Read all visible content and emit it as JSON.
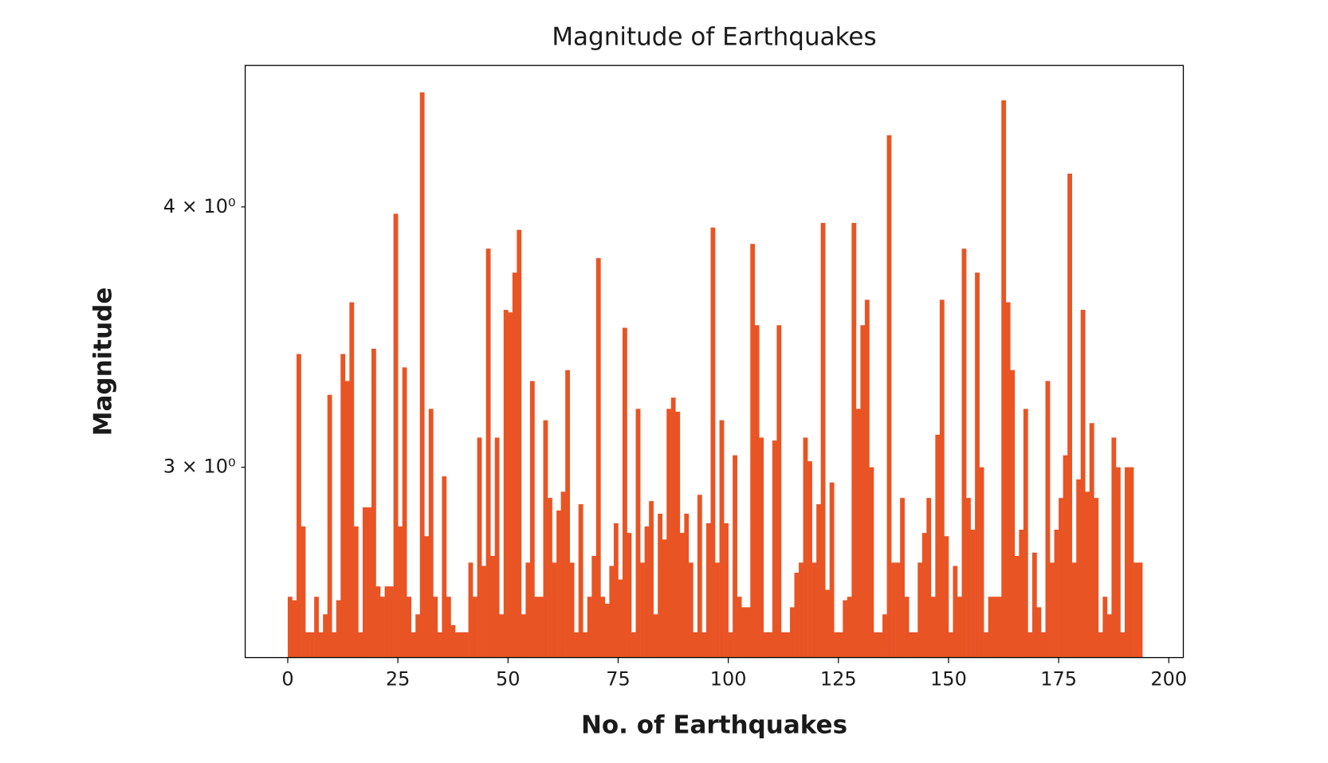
{
  "chart_data": {
    "type": "bar",
    "title": "Magnitude of Earthquakes",
    "xlabel": "No. of Earthquakes",
    "ylabel": "Magnitude",
    "color": "#e95424",
    "log_y": true,
    "grid": false,
    "x": [
      0,
      1,
      2,
      3,
      4,
      5,
      6,
      7,
      8,
      9,
      10,
      11,
      12,
      13,
      14,
      15,
      16,
      17,
      18,
      19,
      20,
      21,
      22,
      23,
      24,
      25,
      26,
      27,
      28,
      29,
      30,
      31,
      32,
      33,
      34,
      35,
      36,
      37,
      38,
      39,
      40,
      41,
      42,
      43,
      44,
      45,
      46,
      47,
      48,
      49,
      50,
      51,
      52,
      53,
      54,
      55,
      56,
      57,
      58,
      59,
      60,
      61,
      62,
      63,
      64,
      65,
      66,
      67,
      68,
      69,
      70,
      71,
      72,
      73,
      74,
      75,
      76,
      77,
      78,
      79,
      80,
      81,
      82,
      83,
      84,
      85,
      86,
      87,
      88,
      89,
      90,
      91,
      92,
      93,
      94,
      95,
      96,
      97,
      98,
      99,
      100,
      101,
      102,
      103,
      104,
      105,
      106,
      107,
      108,
      109,
      110,
      111,
      112,
      113,
      114,
      115,
      116,
      117,
      118,
      119,
      120,
      121,
      122,
      123,
      124,
      125,
      126,
      127,
      128,
      129,
      130,
      131,
      132,
      133,
      134,
      135,
      136,
      137,
      138,
      139,
      140,
      141,
      142,
      143,
      144,
      145,
      146,
      147,
      148,
      149,
      150,
      151,
      152,
      153,
      154,
      155,
      156,
      157,
      158,
      159,
      160,
      161,
      162,
      163,
      164,
      165,
      166,
      167,
      168,
      169,
      170,
      171,
      172,
      173,
      174,
      175,
      176,
      177,
      178,
      179,
      180,
      181,
      182,
      183,
      184,
      185,
      186,
      187,
      188,
      189,
      190,
      191,
      192,
      193
    ],
    "values": [
      2.6,
      2.59,
      3.4,
      2.81,
      2.5,
      2.5,
      2.6,
      2.5,
      2.55,
      3.25,
      2.5,
      2.59,
      3.4,
      3.3,
      3.6,
      2.81,
      2.5,
      2.87,
      2.87,
      3.42,
      2.63,
      2.6,
      2.63,
      2.63,
      3.97,
      2.81,
      3.35,
      2.6,
      2.5,
      2.55,
      4.54,
      2.78,
      3.2,
      2.6,
      2.5,
      2.97,
      2.6,
      2.52,
      2.5,
      2.5,
      2.5,
      2.7,
      2.6,
      3.1,
      2.69,
      3.82,
      2.72,
      3.1,
      2.55,
      3.57,
      3.56,
      3.72,
      3.9,
      2.55,
      2.7,
      3.3,
      2.6,
      2.6,
      3.16,
      2.9,
      2.7,
      2.86,
      2.92,
      3.34,
      2.7,
      2.5,
      2.88,
      2.5,
      2.6,
      2.72,
      3.78,
      2.6,
      2.58,
      2.69,
      2.82,
      2.65,
      3.5,
      2.79,
      2.5,
      3.2,
      2.7,
      2.81,
      2.89,
      2.55,
      2.85,
      2.77,
      3.2,
      3.24,
      3.19,
      2.79,
      2.85,
      2.7,
      2.5,
      2.91,
      2.5,
      2.82,
      3.91,
      2.7,
      3.16,
      2.82,
      2.5,
      3.04,
      2.6,
      2.57,
      2.57,
      3.84,
      3.51,
      3.1,
      2.5,
      2.5,
      3.09,
      3.51,
      2.5,
      2.5,
      2.57,
      2.67,
      2.7,
      3.1,
      3.02,
      2.7,
      2.88,
      3.93,
      2.62,
      2.95,
      2.5,
      2.5,
      2.59,
      2.6,
      3.93,
      3.2,
      3.51,
      3.61,
      3.0,
      2.5,
      2.5,
      2.55,
      4.33,
      2.7,
      2.7,
      2.9,
      2.6,
      2.5,
      2.5,
      2.7,
      2.79,
      2.9,
      2.6,
      3.11,
      3.61,
      2.78,
      2.5,
      2.69,
      2.6,
      3.82,
      2.9,
      2.8,
      3.72,
      3.0,
      2.5,
      2.6,
      2.6,
      2.6,
      4.5,
      3.6,
      3.34,
      2.72,
      2.8,
      3.2,
      2.5,
      2.73,
      2.57,
      2.5,
      3.3,
      2.7,
      2.8,
      2.9,
      3.04,
      4.15,
      2.7,
      2.96,
      3.57,
      2.92,
      3.15,
      2.9,
      2.5,
      2.6,
      2.55,
      3.1,
      3.0,
      2.5,
      3.0,
      3.0,
      2.7,
      2.7
    ],
    "xlim": [
      -9.66,
      203.3
    ],
    "ylim": [
      2.431,
      4.677
    ],
    "xticks": [
      0,
      25,
      50,
      75,
      100,
      125,
      150,
      175,
      200
    ],
    "yticks": [
      {
        "value": 3,
        "label": "3 × 10⁰"
      },
      {
        "value": 4,
        "label": "4 × 10⁰"
      }
    ]
  }
}
